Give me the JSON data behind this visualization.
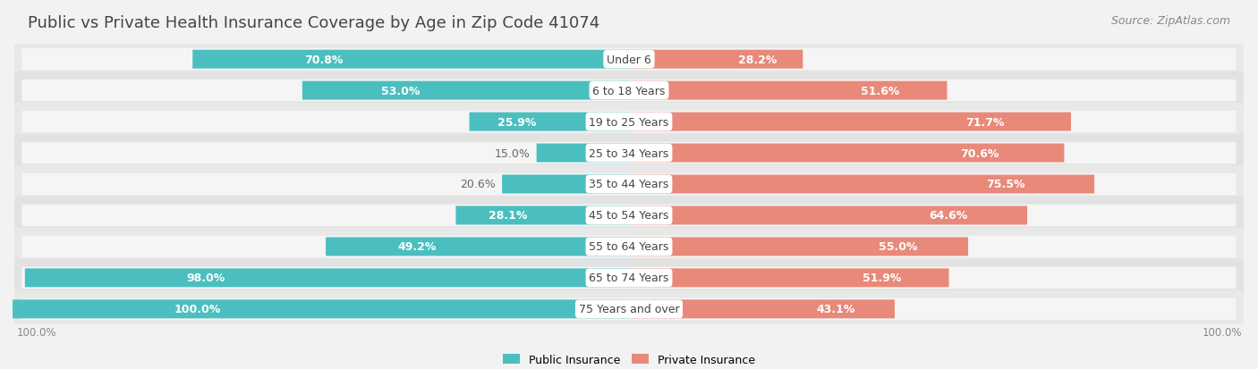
{
  "title": "Public vs Private Health Insurance Coverage by Age in Zip Code 41074",
  "source": "Source: ZipAtlas.com",
  "categories": [
    "Under 6",
    "6 to 18 Years",
    "19 to 25 Years",
    "25 to 34 Years",
    "35 to 44 Years",
    "45 to 54 Years",
    "55 to 64 Years",
    "65 to 74 Years",
    "75 Years and over"
  ],
  "public_values": [
    70.8,
    53.0,
    25.9,
    15.0,
    20.6,
    28.1,
    49.2,
    98.0,
    100.0
  ],
  "private_values": [
    28.2,
    51.6,
    71.7,
    70.6,
    75.5,
    64.6,
    55.0,
    51.9,
    43.1
  ],
  "public_color": "#4BBFBF",
  "private_color": "#E8897A",
  "bg_color": "#f2f2f2",
  "row_bg_even": "#e8e8e8",
  "row_bg_odd": "#e0e0e0",
  "bar_bg_color": "#f8f8f8",
  "text_dark": "#555555",
  "text_white": "#ffffff",
  "title_fontsize": 13,
  "label_fontsize": 9,
  "source_fontsize": 9,
  "legend_fontsize": 9
}
